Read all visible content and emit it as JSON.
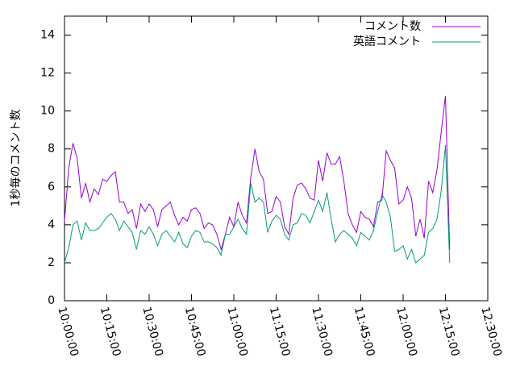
{
  "chart_data": {
    "type": "line",
    "ylabel": "1秒毎のコメント数",
    "ylim": [
      0,
      15
    ],
    "yticks": [
      0,
      2,
      4,
      6,
      8,
      10,
      12,
      14
    ],
    "xlim": [
      "10:00:00",
      "12:30:00"
    ],
    "xticks": [
      "10:00:00",
      "10:15:00",
      "10:30:00",
      "10:45:00",
      "11:00:00",
      "11:15:00",
      "11:30:00",
      "11:45:00",
      "12:00:00",
      "12:15:00",
      "12:30:00"
    ],
    "legend": "top-right",
    "x": [
      "10:00:00",
      "10:01:30",
      "10:03:00",
      "10:04:30",
      "10:06:00",
      "10:07:30",
      "10:09:00",
      "10:10:30",
      "10:12:00",
      "10:13:30",
      "10:15:00",
      "10:16:30",
      "10:18:00",
      "10:19:30",
      "10:21:00",
      "10:22:30",
      "10:24:00",
      "10:25:30",
      "10:27:00",
      "10:28:30",
      "10:30:00",
      "10:31:30",
      "10:33:00",
      "10:34:30",
      "10:36:00",
      "10:37:30",
      "10:39:00",
      "10:40:30",
      "10:42:00",
      "10:43:30",
      "10:45:00",
      "10:46:30",
      "10:48:00",
      "10:49:30",
      "10:51:00",
      "10:52:30",
      "10:54:00",
      "10:55:30",
      "10:57:00",
      "10:58:30",
      "11:00:00",
      "11:01:30",
      "11:03:00",
      "11:04:30",
      "11:06:00",
      "11:07:30",
      "11:09:00",
      "11:10:30",
      "11:12:00",
      "11:13:30",
      "11:15:00",
      "11:16:30",
      "11:18:00",
      "11:19:30",
      "11:21:00",
      "11:22:30",
      "11:24:00",
      "11:25:30",
      "11:27:00",
      "11:28:30",
      "11:30:00",
      "11:31:30",
      "11:33:00",
      "11:34:30",
      "11:36:00",
      "11:37:30",
      "11:39:00",
      "11:40:30",
      "11:42:00",
      "11:43:30",
      "11:45:00",
      "11:46:30",
      "11:48:00",
      "11:49:30",
      "11:51:00",
      "11:52:30",
      "11:54:00",
      "11:55:30",
      "11:57:00",
      "11:58:30",
      "12:00:00",
      "12:01:30",
      "12:03:00",
      "12:04:30",
      "12:06:00",
      "12:07:30",
      "12:09:00",
      "12:10:30",
      "12:12:00",
      "12:13:30",
      "12:15:00",
      "12:16:30"
    ],
    "series": [
      {
        "name": "コメント数",
        "color": "#9400d3",
        "values": [
          4.2,
          7.0,
          8.3,
          7.5,
          5.4,
          6.2,
          5.2,
          5.9,
          5.6,
          6.4,
          6.3,
          6.6,
          6.8,
          5.2,
          5.2,
          4.6,
          4.8,
          3.8,
          5.1,
          4.7,
          5.1,
          4.8,
          3.9,
          4.8,
          5.0,
          5.2,
          4.5,
          4.0,
          4.4,
          4.2,
          4.8,
          4.9,
          4.6,
          3.8,
          4.1,
          4.0,
          3.5,
          2.7,
          3.5,
          4.4,
          3.9,
          5.2,
          4.5,
          4.1,
          6.5,
          8.0,
          6.8,
          6.4,
          4.6,
          4.7,
          5.5,
          5.2,
          3.9,
          3.5,
          5.4,
          6.1,
          6.2,
          5.9,
          5.4,
          5.3,
          7.4,
          6.3,
          7.8,
          7.2,
          7.2,
          7.6,
          6.3,
          4.6,
          4.0,
          3.6,
          4.7,
          4.4,
          4.3,
          3.9,
          5.2,
          5.3,
          7.9,
          7.4,
          7.0,
          5.1,
          5.3,
          6.0,
          5.4,
          3.4,
          4.3,
          3.3,
          6.3,
          5.7,
          6.9,
          8.9,
          10.8,
          2.7
        ]
      },
      {
        "name": "英語コメント",
        "color": "#009e73",
        "values": [
          2.0,
          2.8,
          4.0,
          4.2,
          3.2,
          4.1,
          3.7,
          3.7,
          3.8,
          4.1,
          4.4,
          4.6,
          4.3,
          3.7,
          4.2,
          3.9,
          3.6,
          2.7,
          3.7,
          3.5,
          3.9,
          3.5,
          2.9,
          3.5,
          3.7,
          3.4,
          3.1,
          3.6,
          3.0,
          2.8,
          3.4,
          3.7,
          3.6,
          3.1,
          3.1,
          3.0,
          2.8,
          2.4,
          3.5,
          3.5,
          3.9,
          4.3,
          3.8,
          3.5,
          6.2,
          5.2,
          5.4,
          5.2,
          3.6,
          4.2,
          4.5,
          4.3,
          3.5,
          3.2,
          4.0,
          4.1,
          4.6,
          4.5,
          4.1,
          4.7,
          5.3,
          4.7,
          5.7,
          4.3,
          3.1,
          3.5,
          3.7,
          3.5,
          3.3,
          2.9,
          3.6,
          3.4,
          3.2,
          3.7,
          4.7,
          5.6,
          5.2,
          4.4,
          2.6,
          2.7,
          2.9,
          2.2,
          2.7,
          2.0,
          2.2,
          2.4,
          3.6,
          3.8,
          4.3,
          5.8,
          8.2,
          2.0
        ]
      }
    ]
  }
}
